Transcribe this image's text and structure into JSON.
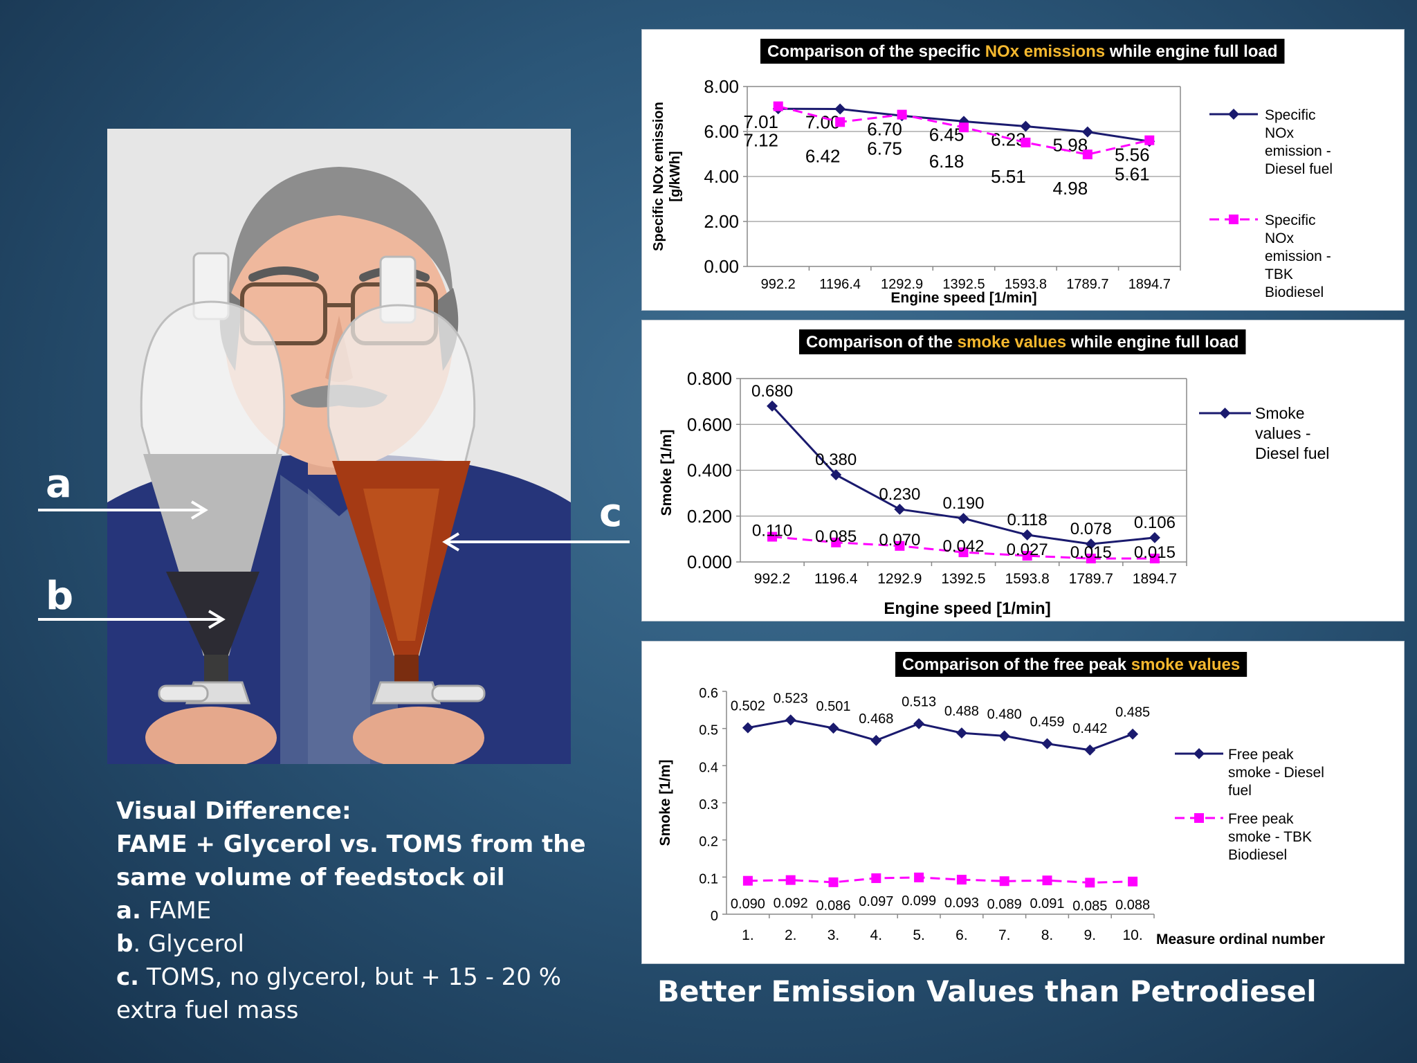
{
  "left": {
    "labels": {
      "a": "a",
      "b": "b",
      "c": "c"
    },
    "caption": {
      "heading_line1": "Visual Difference:",
      "heading_line2": "FAME + Glycerol vs. TOMS from the same volume of feedstock oil",
      "item_a_label": "a.",
      "item_a_text": "FAME",
      "item_b_label": "b",
      "item_b_text": ". Glycerol",
      "item_c_label": "c.",
      "item_c_text": "TOMS, no glycerol, but + 15 - 20 % extra fuel mass"
    }
  },
  "footer_title": "Better Emission Values than Petrodiesel",
  "colors": {
    "diesel": "#1a1a6e",
    "biodiesel": "#ff00ff",
    "title_bg": "#000000",
    "title_highlight": "#f5b82e"
  },
  "chart_data": [
    {
      "type": "line",
      "title_pre": "Comparison of the specific ",
      "title_highlight": "NOx emissions",
      "title_post": " while engine full load",
      "xlabel": "Engine speed [1/min]",
      "ylabel_line1": "Specific NOx emission",
      "ylabel_line2": "[g/kWh]",
      "categories": [
        "992.2",
        "1196.4",
        "1292.9",
        "1392.5",
        "1593.8",
        "1789.7",
        "1894.7"
      ],
      "yticks": [
        "0.00",
        "2.00",
        "4.00",
        "6.00",
        "8.00"
      ],
      "ylim": [
        0,
        8
      ],
      "grid": "horizontal",
      "legend_position": "right",
      "series": [
        {
          "name_lines": [
            "Specific",
            "NOx",
            "emission -",
            "Diesel fuel"
          ],
          "values": [
            7.01,
            7.0,
            6.7,
            6.45,
            6.23,
            5.98,
            5.56
          ],
          "labels": [
            "7.01",
            "7.00",
            "6.70",
            "6.45",
            "6.23",
            "5.98",
            "5.56"
          ],
          "marker": "diamond"
        },
        {
          "name_lines": [
            "Specific",
            "NOx",
            "emission -",
            "TBK",
            "Biodiesel"
          ],
          "values": [
            7.12,
            6.42,
            6.75,
            6.18,
            5.51,
            4.98,
            5.61
          ],
          "labels": [
            "7.12",
            "6.42",
            "6.75",
            "6.18",
            "5.51",
            "4.98",
            "5.61"
          ],
          "marker": "square"
        }
      ]
    },
    {
      "type": "line",
      "title_pre": "Comparison of the ",
      "title_highlight": "smoke values",
      "title_post": " while engine full load",
      "xlabel": "Engine speed [1/min]",
      "ylabel_line1": "Smoke [1/m]",
      "ylabel_line2": "",
      "categories": [
        "992.2",
        "1196.4",
        "1292.9",
        "1392.5",
        "1593.8",
        "1789.7",
        "1894.7"
      ],
      "yticks": [
        "0.000",
        "0.200",
        "0.400",
        "0.600",
        "0.800"
      ],
      "ylim": [
        0,
        0.8
      ],
      "grid": "horizontal",
      "legend_position": "right",
      "series": [
        {
          "name_lines": [
            "Smoke",
            "values -",
            "Diesel fuel"
          ],
          "values": [
            0.68,
            0.38,
            0.23,
            0.19,
            0.118,
            0.078,
            0.106
          ],
          "labels": [
            "0.680",
            "0.380",
            "0.230",
            "0.190",
            "0.118",
            "0.078",
            "0.106"
          ],
          "marker": "diamond"
        },
        {
          "name_lines": [],
          "values": [
            0.11,
            0.085,
            0.07,
            0.042,
            0.027,
            0.015,
            0.015
          ],
          "labels": [
            "0.110",
            "0.085",
            "0.070",
            "0.042",
            "0.027",
            "0.015",
            "0.015"
          ],
          "marker": "square"
        }
      ]
    },
    {
      "type": "line",
      "title_pre": "Comparison of the free peak ",
      "title_highlight": "smoke values",
      "title_post": "",
      "xlabel": "Measure ordinal number",
      "ylabel_line1": "Smoke [1/m]",
      "ylabel_line2": "",
      "categories": [
        "1.",
        "2.",
        "3.",
        "4.",
        "5.",
        "6.",
        "7.",
        "8.",
        "9.",
        "10."
      ],
      "yticks": [
        "0",
        "0.1",
        "0.2",
        "0.3",
        "0.4",
        "0.5",
        "0.6"
      ],
      "ylim": [
        0,
        0.6
      ],
      "grid": "none",
      "legend_position": "right",
      "series": [
        {
          "name_lines": [
            "Free peak",
            "smoke - Diesel",
            "fuel"
          ],
          "values": [
            0.502,
            0.523,
            0.501,
            0.468,
            0.513,
            0.488,
            0.48,
            0.459,
            0.442,
            0.485
          ],
          "labels": [
            "0.502",
            "0.523",
            "0.501",
            "0.468",
            "0.513",
            "0.488",
            "0.480",
            "0.459",
            "0.442",
            "0.485"
          ],
          "marker": "diamond"
        },
        {
          "name_lines": [
            "Free peak",
            "smoke - TBK",
            "Biodiesel"
          ],
          "values": [
            0.09,
            0.092,
            0.086,
            0.097,
            0.099,
            0.093,
            0.089,
            0.091,
            0.085,
            0.088
          ],
          "labels": [
            "0.090",
            "0.092",
            "0.086",
            "0.097",
            "0.099",
            "0.093",
            "0.089",
            "0.091",
            "0.085",
            "0.088"
          ],
          "marker": "square"
        }
      ]
    }
  ]
}
